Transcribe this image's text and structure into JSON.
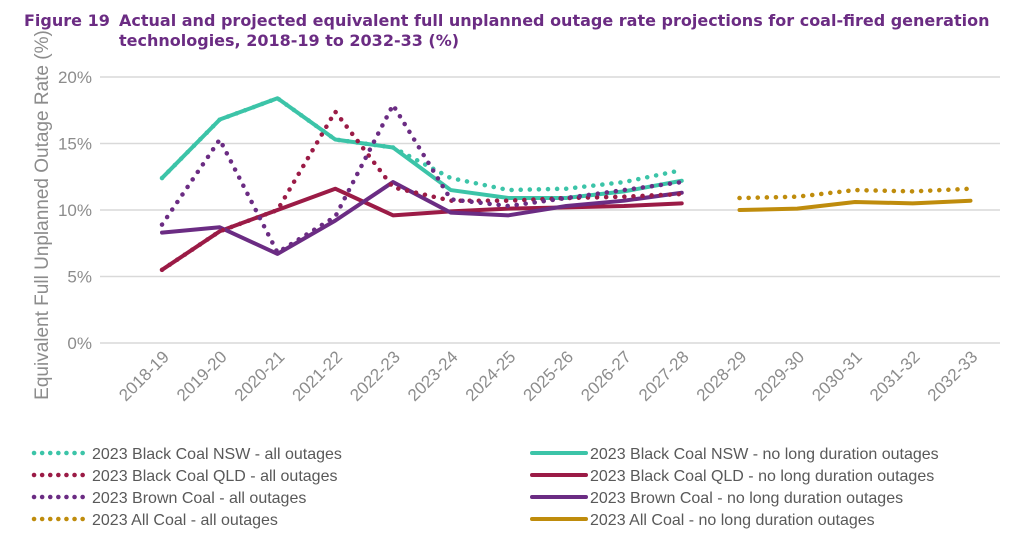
{
  "figure_number": "Figure 19",
  "title": "Actual and projected equivalent full unplanned outage rate projections for coal-fired generation technologies, 2018-19 to 2032-33 (%)",
  "chart_data": {
    "type": "line",
    "ylabel": "Equivalent Full Unplanned Outage Rate (%)",
    "ylim": [
      0,
      20
    ],
    "yticks": [
      "0%",
      "5%",
      "10%",
      "15%",
      "20%"
    ],
    "grid": true,
    "legend_position": "bottom",
    "categories": [
      "2018-19",
      "2019-20",
      "2020-21",
      "2021-22",
      "2022-23",
      "2023-24",
      "2024-25",
      "2025-26",
      "2026-27",
      "2027-28",
      "2028-29",
      "2029-30",
      "2030-31",
      "2031-32",
      "2032-33"
    ],
    "series": [
      {
        "name": "2023 Black Coal NSW - all outages",
        "style": "dotted",
        "color": "#3cc4a8",
        "values": [
          12.4,
          16.8,
          18.4,
          15.3,
          14.7,
          12.4,
          11.5,
          11.6,
          12.1,
          13.0,
          null,
          null,
          null,
          null,
          null
        ]
      },
      {
        "name": "2023 Black Coal NSW - no long duration outages",
        "style": "solid",
        "color": "#3cc4a8",
        "values": [
          12.4,
          16.8,
          18.4,
          15.3,
          14.7,
          11.5,
          10.9,
          10.9,
          11.4,
          12.2,
          null,
          null,
          null,
          null,
          null
        ]
      },
      {
        "name": "2023 Black Coal QLD - all outages",
        "style": "dotted",
        "color": "#9b1b46",
        "values": [
          5.5,
          8.4,
          10.0,
          17.4,
          11.7,
          10.7,
          10.7,
          10.9,
          11.0,
          11.2,
          null,
          null,
          null,
          null,
          null
        ]
      },
      {
        "name": "2023 Black Coal QLD - no long duration outages",
        "style": "solid",
        "color": "#9b1b46",
        "values": [
          5.5,
          8.4,
          10.0,
          11.6,
          9.6,
          9.9,
          10.1,
          10.2,
          10.3,
          10.5,
          null,
          null,
          null,
          null,
          null
        ]
      },
      {
        "name": "2023 Brown Coal - all outages",
        "style": "dotted",
        "color": "#6b2c83",
        "values": [
          8.9,
          15.3,
          6.8,
          9.5,
          17.9,
          10.8,
          10.3,
          10.9,
          11.5,
          12.1,
          null,
          null,
          null,
          null,
          null
        ]
      },
      {
        "name": "2023 Brown Coal - no long duration outages",
        "style": "solid",
        "color": "#6b2c83",
        "values": [
          8.3,
          8.7,
          6.7,
          9.2,
          12.1,
          9.8,
          9.6,
          10.3,
          10.7,
          11.3,
          null,
          null,
          null,
          null,
          null
        ]
      },
      {
        "name": "2023 All Coal - all outages",
        "style": "dotted",
        "color": "#bf8c0c",
        "values": [
          null,
          null,
          null,
          null,
          null,
          null,
          null,
          null,
          null,
          null,
          10.9,
          11.0,
          11.5,
          11.4,
          11.6
        ]
      },
      {
        "name": "2023 All Coal - no long duration outages",
        "style": "solid",
        "color": "#bf8c0c",
        "values": [
          null,
          null,
          null,
          null,
          null,
          null,
          null,
          null,
          null,
          null,
          10.0,
          10.1,
          10.6,
          10.5,
          10.7
        ]
      }
    ]
  }
}
